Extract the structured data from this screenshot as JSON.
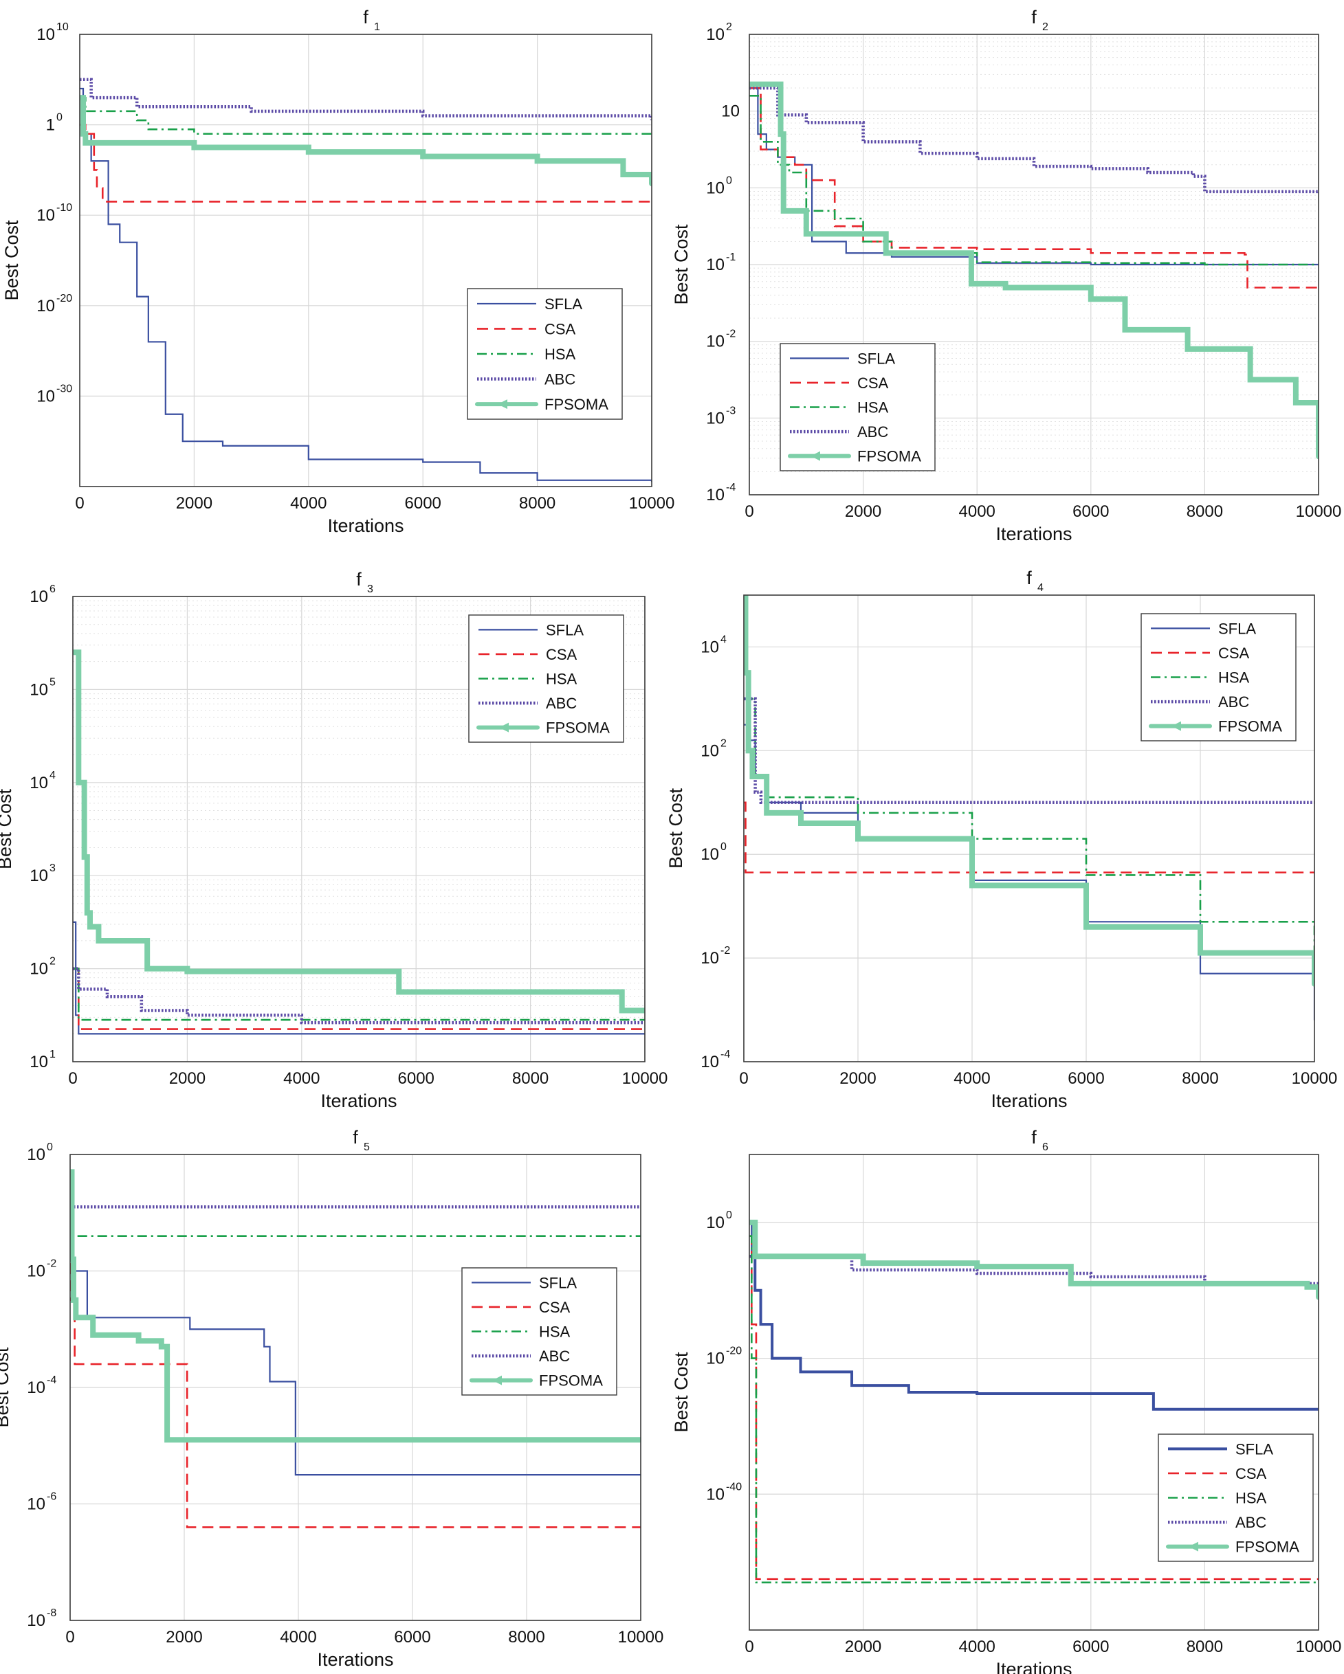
{
  "figure": {
    "colors": {
      "SFLA": "#3a4fa0",
      "CSA": "#e8232a",
      "HSA": "#19a04a",
      "ABC": "#5b4aa6",
      "FPSOMA": "#7dcfa8",
      "FPSOMA_alt": "#85d3bf"
    },
    "legend_labels": [
      "SFLA",
      "CSA",
      "HSA",
      "ABC",
      "FPSOMA"
    ]
  },
  "chart_data": [
    {
      "type": "line",
      "id": "f1",
      "title": "f",
      "title_sub": "1",
      "xlabel": "Iterations",
      "ylabel": "Best Cost",
      "xlim": [
        0,
        10000
      ],
      "xticks": [
        0,
        2000,
        4000,
        6000,
        8000,
        10000
      ],
      "xtick_labels": [
        "0",
        "2000",
        "4000",
        "6000",
        "8000",
        "10000"
      ],
      "ylim_log10": [
        -40,
        10
      ],
      "yticks_log10": [
        10,
        0,
        -10,
        -20,
        -30
      ],
      "ytick_labels": [
        {
          "base": "10",
          "exp": "10"
        },
        {
          "base": "1",
          "exp": "0"
        },
        {
          "base": "10",
          "exp": "-10"
        },
        {
          "base": "10",
          "exp": "-20"
        },
        {
          "base": "10",
          "exp": "-30"
        }
      ],
      "minor_grid": false,
      "legend_position": "center-right",
      "series": [
        {
          "name": "SFLA",
          "style": "solid",
          "x": [
            0,
            60,
            200,
            500,
            700,
            1000,
            1200,
            1500,
            1800,
            2500,
            4000,
            6000,
            7000,
            8000,
            10000
          ],
          "y": [
            4,
            -1,
            -4,
            -11,
            -13,
            -19,
            -24,
            -32,
            -35,
            -35.5,
            -37,
            -37.3,
            -38.5,
            -39.3,
            -39.5
          ]
        },
        {
          "name": "CSA",
          "style": "dashed",
          "x": [
            0,
            100,
            250,
            300,
            400,
            10000
          ],
          "y": [
            0,
            -1,
            -5,
            -7,
            -8.5,
            -8.5
          ]
        },
        {
          "name": "HSA",
          "style": "dashdot",
          "x": [
            0,
            100,
            1000,
            1200,
            2000,
            10000
          ],
          "y": [
            3,
            1.5,
            0.5,
            -0.5,
            -1,
            -1
          ]
        },
        {
          "name": "ABC",
          "style": "dotted",
          "x": [
            0,
            200,
            1000,
            3000,
            6000,
            10000
          ],
          "y": [
            5,
            3,
            2,
            1.5,
            1,
            0.5
          ]
        },
        {
          "name": "FPSOMA",
          "style": "marker",
          "x": [
            0,
            60,
            100,
            2000,
            4000,
            6000,
            8000,
            9500,
            10000
          ],
          "y": [
            3,
            -1,
            -2,
            -2.5,
            -3,
            -3.5,
            -4,
            -5.5,
            -6.5
          ]
        }
      ]
    },
    {
      "type": "line",
      "id": "f2",
      "title": "f",
      "title_sub": "2",
      "xlabel": "Iterations",
      "ylabel": "Best Cost",
      "xlim": [
        0,
        10000
      ],
      "xticks": [
        0,
        2000,
        4000,
        6000,
        8000,
        10000
      ],
      "xtick_labels": [
        "0",
        "2000",
        "4000",
        "6000",
        "8000",
        "10000"
      ],
      "ylim_log10": [
        -4,
        2
      ],
      "yticks_log10": [
        2,
        1,
        0,
        -1,
        -2,
        -3,
        -4
      ],
      "ytick_labels": [
        {
          "base": "10",
          "exp": "2"
        },
        {
          "base": "10",
          "exp": ""
        },
        {
          "base": "10",
          "exp": "0"
        },
        {
          "base": "10",
          "exp": "-1"
        },
        {
          "base": "10",
          "exp": "-2"
        },
        {
          "base": "10",
          "exp": "-3"
        },
        {
          "base": "10",
          "exp": "-4"
        }
      ],
      "minor_grid": true,
      "legend_position": "bottom-left",
      "series": [
        {
          "name": "SFLA",
          "style": "solid",
          "x": [
            0,
            150,
            300,
            500,
            800,
            1100,
            1700,
            2500,
            4000,
            6000,
            8000,
            10000
          ],
          "y": [
            1.3,
            0.7,
            0.5,
            0.4,
            0.3,
            -0.7,
            -0.85,
            -0.9,
            -0.98,
            -1.0,
            -1.0,
            -1.0
          ]
        },
        {
          "name": "CSA",
          "style": "dashed",
          "x": [
            0,
            200,
            500,
            800,
            1000,
            1500,
            2000,
            2500,
            4000,
            6000,
            8700,
            8750,
            10000
          ],
          "y": [
            1.3,
            0.5,
            0.4,
            0.3,
            0.1,
            -0.5,
            -0.7,
            -0.78,
            -0.8,
            -0.85,
            -0.87,
            -1.3,
            -1.3
          ]
        },
        {
          "name": "HSA",
          "style": "dashdot",
          "x": [
            0,
            200,
            500,
            700,
            1000,
            1500,
            2000,
            2500,
            4000,
            6000,
            8000,
            10000
          ],
          "y": [
            1.2,
            0.6,
            0.3,
            0.2,
            -0.3,
            -0.4,
            -0.7,
            -0.85,
            -0.97,
            -0.98,
            -1.0,
            -1.0
          ]
        },
        {
          "name": "ABC",
          "style": "dotted",
          "x": [
            0,
            500,
            1000,
            2000,
            3000,
            4000,
            5000,
            6000,
            7000,
            7800,
            8000,
            10000
          ],
          "y": [
            1.3,
            0.95,
            0.85,
            0.6,
            0.45,
            0.38,
            0.28,
            0.25,
            0.2,
            0.15,
            -0.05,
            -0.07
          ]
        },
        {
          "name": "FPSOMA",
          "style": "marker",
          "x": [
            0,
            500,
            550,
            600,
            1000,
            1300,
            2400,
            3900,
            4500,
            6000,
            6600,
            7700,
            8800,
            9600,
            10000
          ],
          "y": [
            1.35,
            1.35,
            0.7,
            -0.3,
            -0.6,
            -0.6,
            -0.85,
            -1.25,
            -1.3,
            -1.45,
            -1.85,
            -2.1,
            -2.5,
            -2.8,
            -3.5
          ]
        }
      ]
    },
    {
      "type": "line",
      "id": "f3",
      "title": "f",
      "title_sub": "3",
      "xlabel": "Iterations",
      "ylabel": "Best Cost",
      "xlim": [
        0,
        10000
      ],
      "xticks": [
        0,
        2000,
        4000,
        6000,
        8000,
        10000
      ],
      "xtick_labels": [
        "0",
        "2000",
        "4000",
        "6000",
        "8000",
        "10000"
      ],
      "ylim_log10": [
        1,
        6
      ],
      "yticks_log10": [
        6,
        5,
        4,
        3,
        2,
        1
      ],
      "ytick_labels": [
        {
          "base": "10",
          "exp": "6"
        },
        {
          "base": "10",
          "exp": "5"
        },
        {
          "base": "10",
          "exp": "4"
        },
        {
          "base": "10",
          "exp": "3"
        },
        {
          "base": "10",
          "exp": "2"
        },
        {
          "base": "10",
          "exp": "1"
        }
      ],
      "minor_grid": true,
      "legend_position": "top-right",
      "series": [
        {
          "name": "SFLA",
          "style": "solid",
          "x": [
            0,
            50,
            100,
            10000
          ],
          "y": [
            2.5,
            1.5,
            1.3,
            1.3
          ]
        },
        {
          "name": "CSA",
          "style": "dashed",
          "x": [
            0,
            100,
            10000
          ],
          "y": [
            2.0,
            1.35,
            1.35
          ]
        },
        {
          "name": "HSA",
          "style": "dashdot",
          "x": [
            0,
            100,
            10000
          ],
          "y": [
            2.0,
            1.45,
            1.45
          ]
        },
        {
          "name": "ABC",
          "style": "dotted",
          "x": [
            0,
            100,
            600,
            1200,
            2000,
            4000,
            10000
          ],
          "y": [
            2.0,
            1.78,
            1.7,
            1.55,
            1.5,
            1.42,
            1.42
          ]
        },
        {
          "name": "FPSOMA",
          "style": "marker",
          "x": [
            0,
            100,
            200,
            250,
            300,
            450,
            800,
            1300,
            2000,
            5600,
            5700,
            9600,
            10000
          ],
          "y": [
            5.4,
            4.0,
            3.2,
            2.6,
            2.45,
            2.3,
            2.3,
            2.0,
            1.97,
            1.97,
            1.75,
            1.55,
            1.55
          ]
        }
      ]
    },
    {
      "type": "line",
      "id": "f4",
      "title": "f",
      "title_sub": "4",
      "xlabel": "Iterations",
      "ylabel": "Best Cost",
      "xlim": [
        0,
        10000
      ],
      "xticks": [
        0,
        2000,
        4000,
        6000,
        8000,
        10000
      ],
      "xtick_labels": [
        "0",
        "2000",
        "4000",
        "6000",
        "8000",
        "10000"
      ],
      "ylim_log10": [
        -4,
        5
      ],
      "yticks_log10": [
        4,
        2,
        0,
        -2,
        -4
      ],
      "ytick_labels": [
        {
          "base": "10",
          "exp": "4"
        },
        {
          "base": "10",
          "exp": "2"
        },
        {
          "base": "10",
          "exp": "0"
        },
        {
          "base": "10",
          "exp": "-2"
        },
        {
          "base": "10",
          "exp": "-4"
        }
      ],
      "minor_grid": false,
      "legend_position": "top-right",
      "series": [
        {
          "name": "SFLA",
          "style": "solid",
          "x": [
            0,
            100,
            200,
            400,
            1000,
            2000,
            4000,
            6000,
            8000,
            10000
          ],
          "y": [
            2.5,
            2.2,
            1.5,
            1.0,
            0.8,
            0.3,
            -0.5,
            -1.3,
            -2.3,
            -3.2
          ]
        },
        {
          "name": "CSA",
          "style": "dashed",
          "x": [
            0,
            30,
            10000
          ],
          "y": [
            1.0,
            -0.35,
            -0.35
          ]
        },
        {
          "name": "HSA",
          "style": "dashdot",
          "x": [
            0,
            200,
            400,
            2000,
            4000,
            6000,
            8000,
            10000
          ],
          "y": [
            3.0,
            1.5,
            1.1,
            0.8,
            0.3,
            -0.4,
            -1.3,
            -2.0
          ]
        },
        {
          "name": "ABC",
          "style": "dotted",
          "x": [
            0,
            200,
            300,
            10000
          ],
          "y": [
            3.0,
            1.2,
            1.0,
            1.0
          ]
        },
        {
          "name": "FPSOMA",
          "style": "marker",
          "x": [
            0,
            30,
            80,
            150,
            400,
            1000,
            2000,
            4000,
            6000,
            8000,
            10000
          ],
          "y": [
            5.0,
            3.5,
            2.0,
            1.5,
            0.8,
            0.6,
            0.3,
            -0.6,
            -1.4,
            -1.9,
            -2.5
          ]
        }
      ]
    },
    {
      "type": "line",
      "id": "f5",
      "title": "f",
      "title_sub": "5",
      "xlabel": "Iterations",
      "ylabel": "Best Cost",
      "xlim": [
        0,
        10000
      ],
      "xticks": [
        0,
        2000,
        4000,
        6000,
        8000,
        10000
      ],
      "xtick_labels": [
        "0",
        "2000",
        "4000",
        "6000",
        "8000",
        "10000"
      ],
      "ylim_log10": [
        -8,
        0
      ],
      "yticks_log10": [
        0,
        -2,
        -4,
        -6,
        -8
      ],
      "ytick_labels": [
        {
          "base": "10",
          "exp": "0"
        },
        {
          "base": "10",
          "exp": "-2"
        },
        {
          "base": "10",
          "exp": "-4"
        },
        {
          "base": "10",
          "exp": "-6"
        },
        {
          "base": "10",
          "exp": "-8"
        }
      ],
      "minor_grid": false,
      "legend_position": "center-right",
      "series": [
        {
          "name": "SFLA",
          "style": "solid",
          "x": [
            0,
            50,
            300,
            1500,
            2100,
            3400,
            3500,
            3900,
            3950,
            10000
          ],
          "y": [
            -1.8,
            -2.0,
            -2.8,
            -2.8,
            -3.0,
            -3.3,
            -3.9,
            -3.9,
            -5.5,
            -5.5
          ]
        },
        {
          "name": "CSA",
          "style": "dashed",
          "x": [
            0,
            20,
            80,
            2000,
            2050,
            10000
          ],
          "y": [
            -1.0,
            -2.5,
            -3.6,
            -3.6,
            -6.4,
            -6.4
          ]
        },
        {
          "name": "HSA",
          "style": "dashdot",
          "x": [
            0,
            30,
            10000
          ],
          "y": [
            -0.5,
            -1.4,
            -1.4
          ]
        },
        {
          "name": "ABC",
          "style": "dotted",
          "x": [
            0,
            10000
          ],
          "y": [
            -0.9,
            -0.9
          ]
        },
        {
          "name": "FPSOMA",
          "style": "marker",
          "x": [
            0,
            30,
            60,
            100,
            400,
            1200,
            1600,
            1700,
            10000
          ],
          "y": [
            -0.3,
            -1.8,
            -2.5,
            -2.8,
            -3.1,
            -3.2,
            -3.3,
            -4.9,
            -4.9
          ]
        }
      ]
    },
    {
      "type": "line",
      "id": "f6",
      "title": "f",
      "title_sub": "6",
      "xlabel": "Iterations",
      "ylabel": "Best Cost",
      "xlim": [
        0,
        10000
      ],
      "xticks": [
        0,
        2000,
        4000,
        6000,
        8000,
        10000
      ],
      "xtick_labels": [
        "0",
        "2000",
        "4000",
        "6000",
        "8000",
        "10000"
      ],
      "ylim_log10": [
        -60,
        10
      ],
      "yticks_log10": [
        0,
        -20,
        -40
      ],
      "ytick_labels": [
        {
          "base": "10",
          "exp": "0"
        },
        {
          "base": "10",
          "exp": "-20"
        },
        {
          "base": "10",
          "exp": "-40"
        }
      ],
      "minor_grid": false,
      "legend_position": "bottom-right",
      "series": [
        {
          "name": "SFLA",
          "style": "thick",
          "x": [
            0,
            50,
            100,
            200,
            400,
            900,
            1800,
            2800,
            4000,
            7000,
            7100,
            10000
          ],
          "y": [
            0,
            -5,
            -10,
            -15,
            -20,
            -22,
            -24,
            -25,
            -25.2,
            -25.2,
            -27.5,
            -27.5
          ]
        },
        {
          "name": "CSA",
          "style": "dashed",
          "x": [
            0,
            40,
            120,
            10000
          ],
          "y": [
            -2,
            -15,
            -52.5,
            -52.5
          ]
        },
        {
          "name": "HSA",
          "style": "dashdot",
          "x": [
            0,
            40,
            120,
            10000
          ],
          "y": [
            -2,
            -20,
            -53,
            -53
          ]
        },
        {
          "name": "ABC",
          "style": "dotted",
          "x": [
            0,
            1800,
            4000,
            6000,
            8000,
            10000
          ],
          "y": [
            -5,
            -7,
            -7.5,
            -8,
            -9,
            -10
          ]
        },
        {
          "name": "FPSOMA",
          "style": "marker",
          "x": [
            0,
            100,
            2000,
            4000,
            5600,
            5650,
            9800,
            10000
          ],
          "y": [
            0,
            -5,
            -6,
            -6.5,
            -6.5,
            -9,
            -9.5,
            -11
          ]
        }
      ]
    }
  ]
}
